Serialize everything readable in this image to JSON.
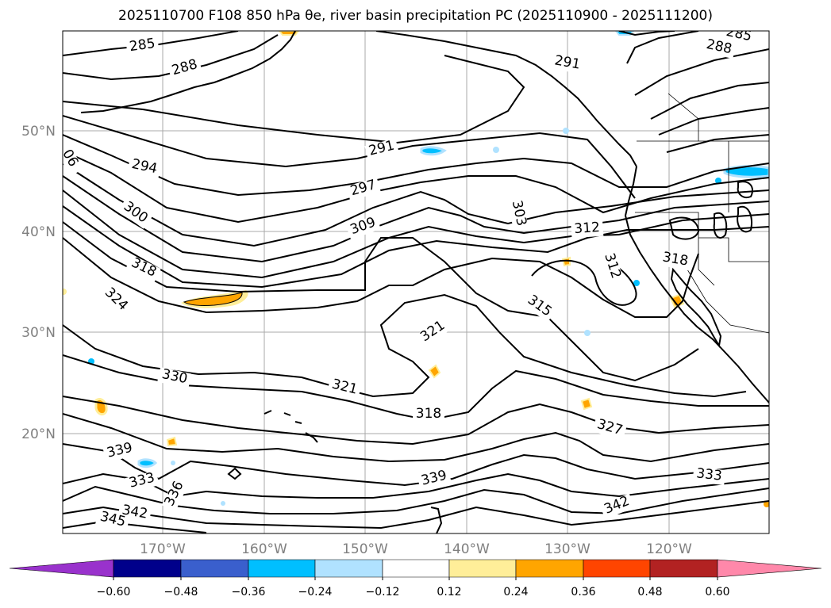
{
  "title": "2025110700 F108 850 hPa θe, river basin precipitation PC (2025110900 - 2025111200)",
  "map": {
    "lat_labels": [
      "50°N",
      "40°N",
      "30°N",
      "20°N"
    ],
    "lon_labels": [
      "170°W",
      "160°W",
      "150°W",
      "140°W",
      "130°W",
      "120°W"
    ],
    "contour_labels": [
      {
        "text": "285",
        "name": "contour-label-285-a"
      },
      {
        "text": "288",
        "name": "contour-label-288-a"
      },
      {
        "text": "285",
        "name": "contour-label-285-b"
      },
      {
        "text": "288",
        "name": "contour-label-288-b"
      },
      {
        "text": "291",
        "name": "contour-label-291-a"
      },
      {
        "text": "291",
        "name": "contour-label-291-b"
      },
      {
        "text": "294",
        "name": "contour-label-294"
      },
      {
        "text": "297",
        "name": "contour-label-297"
      },
      {
        "text": "300",
        "name": "contour-label-300"
      },
      {
        "text": "303",
        "name": "contour-label-303"
      },
      {
        "text": "309",
        "name": "contour-label-309"
      },
      {
        "text": "312",
        "name": "contour-label-312-a"
      },
      {
        "text": "312",
        "name": "contour-label-312-b"
      },
      {
        "text": "318",
        "name": "contour-label-318-a"
      },
      {
        "text": "318",
        "name": "contour-label-318-b"
      },
      {
        "text": "318",
        "name": "contour-label-318-c"
      },
      {
        "text": "324",
        "name": "contour-label-324"
      },
      {
        "text": "315",
        "name": "contour-label-315"
      },
      {
        "text": "321",
        "name": "contour-label-321-a"
      },
      {
        "text": "321",
        "name": "contour-label-321-b"
      },
      {
        "text": "330",
        "name": "contour-label-330"
      },
      {
        "text": "327",
        "name": "contour-label-327"
      },
      {
        "text": "339",
        "name": "contour-label-339-a"
      },
      {
        "text": "339",
        "name": "contour-label-339-b"
      },
      {
        "text": "333",
        "name": "contour-label-333-a"
      },
      {
        "text": "333",
        "name": "contour-label-333-b"
      },
      {
        "text": "336",
        "name": "contour-label-336"
      },
      {
        "text": "342",
        "name": "contour-label-342-a"
      },
      {
        "text": "342",
        "name": "contour-label-342-b"
      },
      {
        "text": "345",
        "name": "contour-label-345"
      },
      {
        "text": "06",
        "name": "contour-label-edge"
      }
    ]
  },
  "colorbar": {
    "colors": [
      "#9932cc",
      "#00008b",
      "#3a5fcd",
      "#00bfff",
      "#b0e2ff",
      "#ffffff",
      "#ffee99",
      "#ffa500",
      "#ff4500",
      "#b22222",
      "#ff88aa"
    ],
    "ticks": [
      "−0.60",
      "−0.48",
      "−0.36",
      "−0.24",
      "−0.12",
      "0.12",
      "0.24",
      "0.36",
      "0.48",
      "0.60"
    ]
  }
}
